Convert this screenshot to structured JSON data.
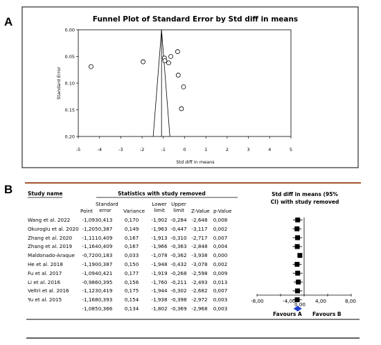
{
  "panel_a_label": "A",
  "panel_b_label": "B",
  "chart_data": [
    {
      "type": "scatter",
      "title": "Funnel Plot of Standard Error by Std diff in means",
      "xlabel": "Std diff in means",
      "ylabel": "Standard Error",
      "xlim": [
        -5,
        5
      ],
      "ylim": [
        0.2,
        0.0
      ],
      "x_ticks": [
        "-5",
        "-4",
        "-3",
        "-2",
        "-1",
        "0",
        "1",
        "2",
        "3",
        "4",
        "5"
      ],
      "y_ticks": [
        "0.00",
        "0.05",
        "0.10",
        "0.15",
        "0.20"
      ],
      "summary_effect": -1.085,
      "points": [
        {
          "x": -4.4,
          "y": 0.069
        },
        {
          "x": -1.95,
          "y": 0.06
        },
        {
          "x": -0.95,
          "y": 0.053
        },
        {
          "x": -0.93,
          "y": 0.058
        },
        {
          "x": -0.75,
          "y": 0.062
        },
        {
          "x": -0.65,
          "y": 0.05
        },
        {
          "x": -0.33,
          "y": 0.041
        },
        {
          "x": -0.3,
          "y": 0.085
        },
        {
          "x": -0.05,
          "y": 0.107
        },
        {
          "x": -0.15,
          "y": 0.148
        }
      ]
    },
    {
      "type": "table",
      "title": "Statistics with study removed",
      "columns": {
        "study": "Study name",
        "point": "Point",
        "se": "Standard error",
        "variance": "Variance",
        "lower": "Lower limit",
        "upper": "Upper limit",
        "z": "Z-Value",
        "p": "p-Value"
      },
      "forest_header": "Std diff in means (95% CI) with study removed",
      "rows": [
        {
          "study": "Wang et al. 2022",
          "point": "-1,093",
          "se": "0,413",
          "variance": "0,170",
          "lower": "-1,902",
          "upper": "-0,284",
          "z": "-2,648",
          "p": "0,008",
          "value": -1.093
        },
        {
          "study": "Okuroglu et al. 2020",
          "point": "-1,205",
          "se": "0,387",
          "variance": "0,149",
          "lower": "-1,963",
          "upper": "-0,447",
          "z": "-3,117",
          "p": "0,002",
          "value": -1.205
        },
        {
          "study": "Zhang et al. 2020",
          "point": "-1,111",
          "se": "0,409",
          "variance": "0,167",
          "lower": "-1,913",
          "upper": "-0,310",
          "z": "-2,717",
          "p": "0,007",
          "value": -1.111
        },
        {
          "study": "Zhang et al. 2019",
          "point": "-1,164",
          "se": "0,409",
          "variance": "0,167",
          "lower": "-1,966",
          "upper": "-0,363",
          "z": "-2,848",
          "p": "0,004",
          "value": -1.164
        },
        {
          "study": "Maldonado-Araque",
          "point": "-0,720",
          "se": "0,183",
          "variance": "0,033",
          "lower": "-1,078",
          "upper": "-0,362",
          "z": "-3,938",
          "p": "0,000",
          "value": -0.72
        },
        {
          "study": "He et al. 2018",
          "point": "-1,190",
          "se": "0,387",
          "variance": "0,150",
          "lower": "-1,948",
          "upper": "-0,432",
          "z": "-3,078",
          "p": "0,002",
          "value": -1.19
        },
        {
          "study": "Fu et al. 2017",
          "point": "-1,094",
          "se": "0,421",
          "variance": "0,177",
          "lower": "-1,919",
          "upper": "-0,268",
          "z": "-2,598",
          "p": "0,009",
          "value": -1.094
        },
        {
          "study": "Li et al. 2016",
          "point": "-0,986",
          "se": "0,395",
          "variance": "0,156",
          "lower": "-1,760",
          "upper": "-0,211",
          "z": "-2,493",
          "p": "0,013",
          "value": -0.986
        },
        {
          "study": "Veltri et al. 2016",
          "point": "-1,123",
          "se": "0,419",
          "variance": "0,175",
          "lower": "-1,944",
          "upper": "-0,302",
          "z": "-2,682",
          "p": "0,007",
          "value": -1.123
        },
        {
          "study": "Yu et al. 2015",
          "point": "-1,168",
          "se": "0,393",
          "variance": "0,154",
          "lower": "-1,938",
          "upper": "-0,398",
          "z": "-2,972",
          "p": "0,003",
          "value": -1.168
        }
      ],
      "summary": {
        "study": "",
        "point": "-1,085",
        "se": "0,366",
        "variance": "0,134",
        "lower": "-1,802",
        "upper": "-0,369",
        "z": "-2,968",
        "p": "0,003",
        "value": -1.085
      },
      "forest_axis": {
        "min": -8,
        "max": 8,
        "ticks": [
          "-8,00",
          "-4,00",
          "0,00",
          "4,00",
          "8,00"
        ]
      },
      "favours_a": "Favours A",
      "favours_b": "Favours B",
      "marker_color": "#000000",
      "summary_color": "#1f3fd6",
      "rule_color": "#a0522d"
    }
  ]
}
